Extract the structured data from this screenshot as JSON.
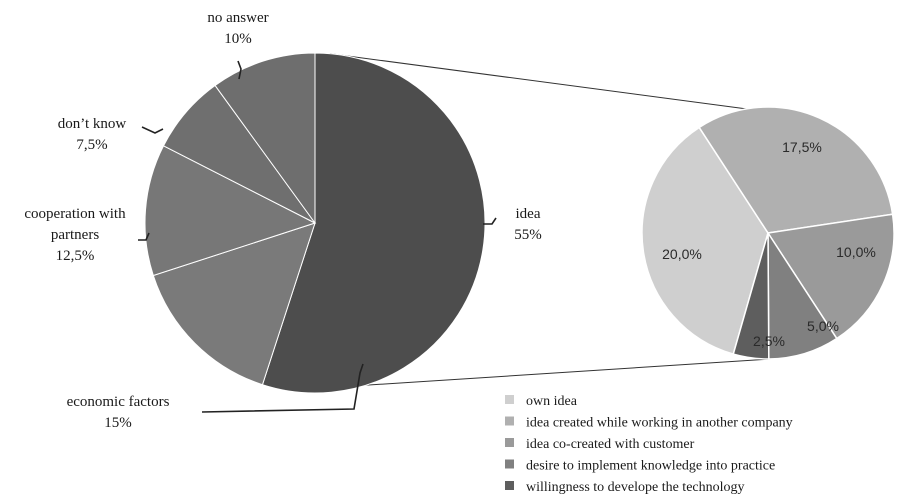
{
  "chart_data": [
    {
      "type": "pie",
      "categories": [
        "idea",
        "economic factors",
        "cooperation with partners",
        "don’t know",
        "no answer"
      ],
      "values": [
        55,
        15,
        12.5,
        7.5,
        10
      ],
      "value_labels": [
        "55%",
        "15%",
        "12,5%",
        "7,5%",
        "10%"
      ],
      "label_lines": [
        [
          "idea",
          "55%"
        ],
        [
          "economic factors",
          "15%"
        ],
        [
          "cooperation with",
          "partners",
          "12,5%"
        ],
        [
          "don’t know",
          "7,5%"
        ],
        [
          "no answer",
          "10%"
        ]
      ],
      "colors": [
        "#4d4d4d",
        "#7a7a7a",
        "#777777",
        "#6f6f6f",
        "#6e6e6e"
      ],
      "legend": "none"
    },
    {
      "type": "pie",
      "categories": [
        "own idea",
        "idea created while working in another company",
        "idea co-created with customer",
        "desire to implement knowledge into practice",
        "willingness to develope the technology"
      ],
      "values": [
        20.0,
        17.5,
        10.0,
        5.0,
        2.5
      ],
      "value_labels": [
        "20,0%",
        "17,5%",
        "10,0%",
        "5,0%",
        "2,5%"
      ],
      "colors": [
        "#cfcfcf",
        "#b0b0b0",
        "#9a9a9a",
        "#808080",
        "#5e5e5e"
      ],
      "legend": "bottom-right"
    }
  ]
}
